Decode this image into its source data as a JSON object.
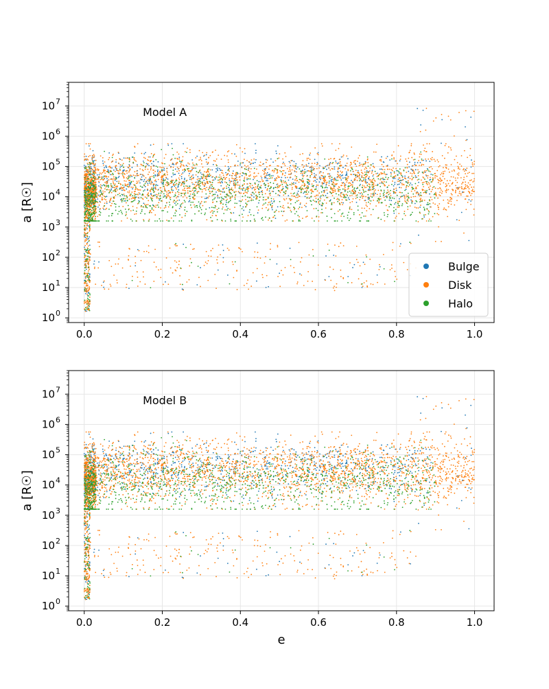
{
  "chart_data": [
    {
      "type": "scatter",
      "annotation": "Model A",
      "xlabel": "",
      "ylabel": "a [R☉]",
      "xlim": [
        -0.04,
        1.05
      ],
      "ylim": [
        0.7,
        60000000
      ],
      "yscale": "log",
      "grid": true,
      "legend": "lower-right",
      "x_ticks": [
        0.0,
        0.2,
        0.4,
        0.6,
        0.8,
        1.0
      ],
      "x_tick_labels": [
        "0.0",
        "0.2",
        "0.4",
        "0.6",
        "0.8",
        "1.0"
      ],
      "y_ticks": [
        1,
        10,
        100,
        1000,
        10000,
        100000,
        1000000,
        10000000
      ],
      "y_tick_base": [
        "10",
        "10",
        "10",
        "10",
        "10",
        "10",
        "10",
        "10"
      ],
      "y_tick_exp": [
        "0",
        "1",
        "2",
        "3",
        "4",
        "5",
        "6",
        "7"
      ],
      "series": [
        {
          "name": "Bulge",
          "color": "#1f77b4",
          "density": "moderate",
          "e_max": 0.89,
          "a_core": [
            20000,
            200000
          ]
        },
        {
          "name": "Disk",
          "color": "#ff7f0e",
          "density": "high",
          "e_max": 1.0,
          "a_core": [
            8000,
            250000
          ]
        },
        {
          "name": "Halo",
          "color": "#2ca02c",
          "density": "moderate",
          "e_max": 0.9,
          "a_core": [
            1000,
            100000
          ]
        }
      ]
    },
    {
      "type": "scatter",
      "annotation": "Model B",
      "xlabel": "e",
      "ylabel": "a [R☉]",
      "xlim": [
        -0.04,
        1.05
      ],
      "ylim": [
        0.7,
        60000000
      ],
      "yscale": "log",
      "grid": true,
      "legend": "",
      "x_ticks": [
        0.0,
        0.2,
        0.4,
        0.6,
        0.8,
        1.0
      ],
      "x_tick_labels": [
        "0.0",
        "0.2",
        "0.4",
        "0.6",
        "0.8",
        "1.0"
      ],
      "y_ticks": [
        1,
        10,
        100,
        1000,
        10000,
        100000,
        1000000,
        10000000
      ],
      "y_tick_base": [
        "10",
        "10",
        "10",
        "10",
        "10",
        "10",
        "10",
        "10"
      ],
      "y_tick_exp": [
        "0",
        "1",
        "2",
        "3",
        "4",
        "5",
        "6",
        "7"
      ],
      "series": [
        {
          "name": "Bulge",
          "color": "#1f77b4",
          "density": "moderate",
          "e_max": 0.89,
          "a_core": [
            20000,
            200000
          ]
        },
        {
          "name": "Disk",
          "color": "#ff7f0e",
          "density": "high",
          "e_max": 1.0,
          "a_core": [
            8000,
            250000
          ]
        },
        {
          "name": "Halo",
          "color": "#2ca02c",
          "density": "moderate",
          "e_max": 0.9,
          "a_core": [
            1000,
            100000
          ]
        }
      ]
    }
  ]
}
